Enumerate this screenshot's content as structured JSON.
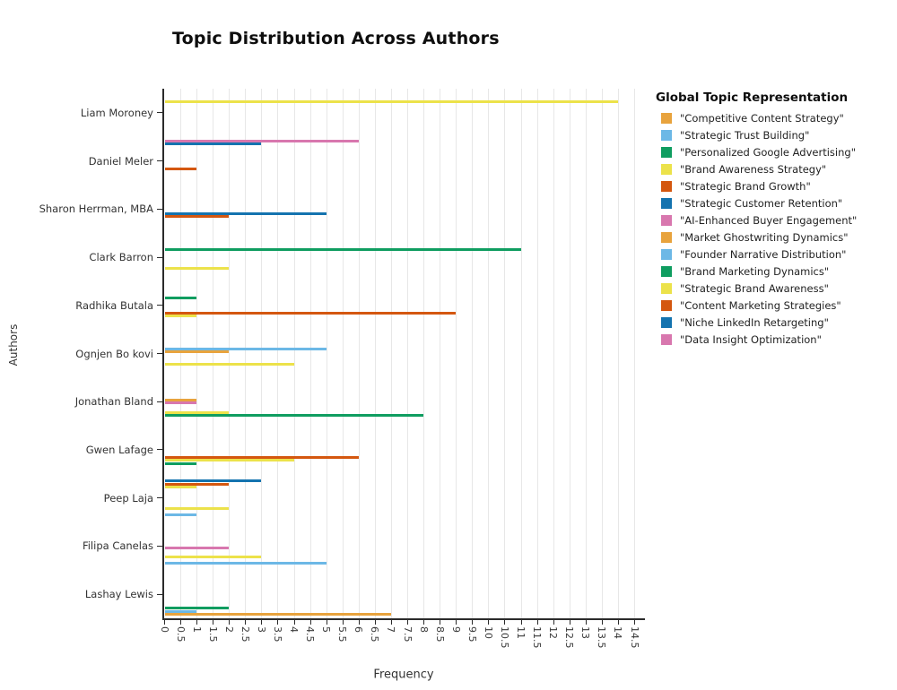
{
  "chart_data": {
    "type": "bar",
    "orientation": "horizontal",
    "title": "Topic Distribution Across Authors",
    "xlabel": "Frequency",
    "ylabel": "Authors",
    "legend_title": "Global Topic Representation",
    "xlim": [
      0,
      14.75
    ],
    "grid": true,
    "legend_position": "right",
    "xtick_labels": [
      "0",
      "0.5",
      "1",
      "1.5",
      "2",
      "2.5",
      "3",
      "3.5",
      "4",
      "4.5",
      "5",
      "5.5",
      "6",
      "6.5",
      "7",
      "7.5",
      "8",
      "8.5",
      "9",
      "9.5",
      "10",
      "10.5",
      "11",
      "11.5",
      "12",
      "12.5",
      "13",
      "13.5",
      "14",
      "14.5"
    ],
    "topics": [
      {
        "label": "\"Competitive Content Strategy\"",
        "color": "#e8a33d"
      },
      {
        "label": "\"Strategic Trust Building\"",
        "color": "#6cb8e6"
      },
      {
        "label": "\"Personalized Google Advertising\"",
        "color": "#0f9d60"
      },
      {
        "label": "\"Brand Awareness Strategy\"",
        "color": "#ece24a"
      },
      {
        "label": "\"Strategic Brand Growth\"",
        "color": "#d4570f"
      },
      {
        "label": "\"Strategic Customer Retention\"",
        "color": "#1473af"
      },
      {
        "label": "\"AI-Enhanced Buyer Engagement\"",
        "color": "#d877ae"
      },
      {
        "label": "\"Market Ghostwriting Dynamics\"",
        "color": "#e8a33d"
      },
      {
        "label": "\"Founder Narrative Distribution\"",
        "color": "#6cb8e6"
      },
      {
        "label": "\"Brand Marketing Dynamics\"",
        "color": "#0f9d60"
      },
      {
        "label": "\"Strategic Brand Awareness\"",
        "color": "#ece24a"
      },
      {
        "label": "\"Content Marketing Strategies\"",
        "color": "#d4570f"
      },
      {
        "label": "\"Niche LinkedIn Retargeting\"",
        "color": "#1473af"
      },
      {
        "label": "\"Data Insight Optimization\"",
        "color": "#d877ae"
      }
    ],
    "authors": [
      {
        "name": "Liam Moroney",
        "bars": [
          {
            "topic": 11,
            "value": 14
          }
        ]
      },
      {
        "name": "Daniel Meler",
        "bars": [
          {
            "topic": 14,
            "value": 6
          },
          {
            "topic": 13,
            "value": 3
          },
          {
            "topic": 5,
            "value": 1
          }
        ]
      },
      {
        "name": "Sharon Herrman, MBA",
        "bars": [
          {
            "topic": 6,
            "value": 5
          },
          {
            "topic": 5,
            "value": 2
          }
        ]
      },
      {
        "name": "Clark Barron",
        "bars": [
          {
            "topic": 10,
            "value": 11
          },
          {
            "topic": 4,
            "value": 2
          }
        ]
      },
      {
        "name": "Radhika Butala",
        "bars": [
          {
            "topic": 10,
            "value": 1
          },
          {
            "topic": 5,
            "value": 9
          },
          {
            "topic": 4,
            "value": 1
          }
        ]
      },
      {
        "name": "Ognjen Bo kovi",
        "bars": [
          {
            "topic": 9,
            "value": 5
          },
          {
            "topic": 8,
            "value": 2
          },
          {
            "topic": 4,
            "value": 4
          }
        ]
      },
      {
        "name": "Jonathan Bland",
        "bars": [
          {
            "topic": 8,
            "value": 1
          },
          {
            "topic": 7,
            "value": 1
          },
          {
            "topic": 4,
            "value": 2
          },
          {
            "topic": 3,
            "value": 8
          }
        ]
      },
      {
        "name": "Gwen Lafage",
        "bars": [
          {
            "topic": 5,
            "value": 6
          },
          {
            "topic": 4,
            "value": 4
          },
          {
            "topic": 3,
            "value": 1
          }
        ]
      },
      {
        "name": "Peep Laja",
        "bars": [
          {
            "topic": 13,
            "value": 3
          },
          {
            "topic": 12,
            "value": 2
          },
          {
            "topic": 11,
            "value": 1
          },
          {
            "topic": 4,
            "value": 2
          },
          {
            "topic": 2,
            "value": 1
          }
        ]
      },
      {
        "name": "Filipa Canelas",
        "bars": [
          {
            "topic": 7,
            "value": 2
          },
          {
            "topic": 4,
            "value": 3
          },
          {
            "topic": 2,
            "value": 5
          }
        ]
      },
      {
        "name": "Lashay Lewis",
        "bars": [
          {
            "topic": 3,
            "value": 2
          },
          {
            "topic": 2,
            "value": 1
          },
          {
            "topic": 1,
            "value": 7
          }
        ]
      }
    ]
  }
}
